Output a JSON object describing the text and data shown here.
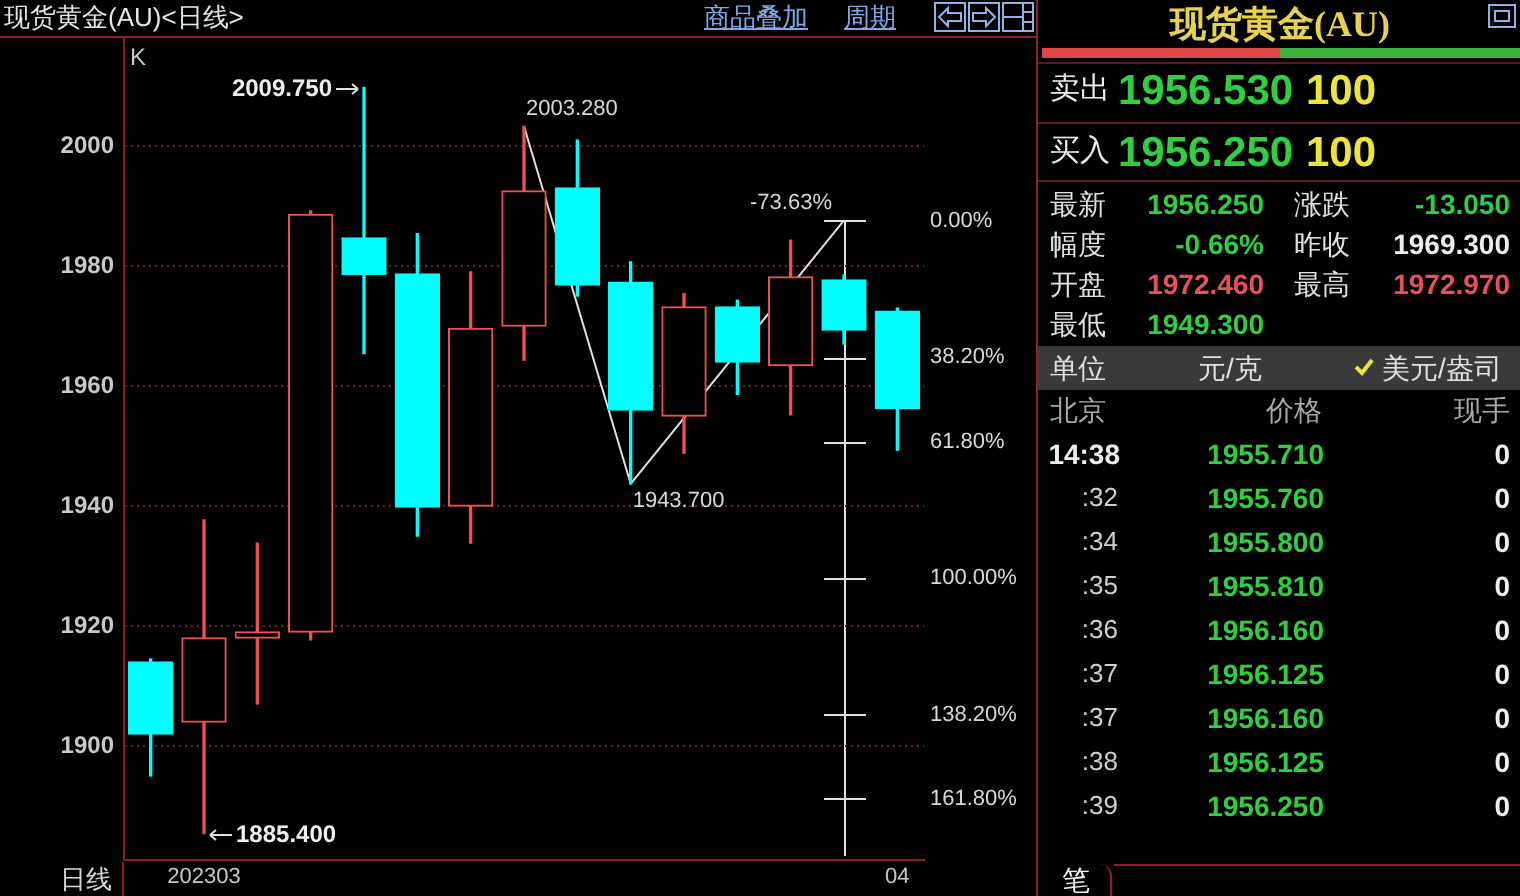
{
  "chart_data": [
    {
      "type": "candlestick",
      "title": "现货黄金(AU)<日线>",
      "xlabel": "日线",
      "categories": [
        null,
        "202303",
        null,
        null,
        null,
        null,
        null,
        null,
        null,
        null,
        null,
        null,
        null,
        null,
        "04"
      ],
      "ohlc": [
        [
          1914,
          1914.5,
          1895,
          1902
        ],
        [
          1904,
          1937.7,
          1885.4,
          1918
        ],
        [
          1918,
          1933.8,
          1907,
          1919
        ],
        [
          1919,
          1989.2,
          1917.7,
          1988.6
        ],
        [
          1984.7,
          2009.75,
          1965.4,
          1978.6
        ],
        [
          1978.7,
          1985.4,
          1935,
          1939.8
        ],
        [
          1940,
          1979,
          1933.8,
          1969.6
        ],
        [
          1970,
          2003.28,
          1964.3,
          1992.5
        ],
        [
          1993,
          2001,
          1975,
          1976.8
        ],
        [
          1977.3,
          1980.7,
          1943.7,
          1956
        ],
        [
          1955,
          1975.4,
          1948.8,
          1973.2
        ],
        [
          1973.2,
          1974.3,
          1958.6,
          1964
        ],
        [
          1963.4,
          1984.3,
          1955.2,
          1978.2
        ],
        [
          1977.7,
          1978.5,
          1967,
          1969.3
        ],
        [
          1972.46,
          1972.97,
          1949.3,
          1956.25
        ]
      ],
      "colors": [
        "#00ffff",
        "#f05050",
        "#f05050",
        "#f05050",
        "#00ffff",
        "#00ffff",
        "#f05050",
        "#f05050",
        "#00ffff",
        "#00ffff",
        "#f05050",
        "#00ffff",
        "#f05050",
        "#00ffff",
        "#00ffff"
      ],
      "series": [
        {
          "type": "line",
          "color": "#e0e0e0",
          "values": [
            null,
            null,
            null,
            null,
            null,
            null,
            null,
            2003.28,
            null,
            1943.7,
            null,
            null,
            null,
            1987.6,
            null
          ],
          "value_labels": [
            null,
            null,
            null,
            null,
            null,
            null,
            null,
            "2003.280",
            null,
            "1943.700",
            null,
            null,
            null,
            null,
            null
          ]
        }
      ],
      "ylim": [
        1881,
        2018
      ],
      "yticks": [
        1900,
        1920,
        1940,
        1960,
        1980,
        2000
      ],
      "y2lim": [
        178.9,
        -51.1
      ],
      "y2ticks": [
        {
          "value": 0,
          "label": "0.00%"
        },
        {
          "value": 38.2,
          "label": "38.20%"
        },
        {
          "value": 61.8,
          "label": "61.80%"
        },
        {
          "value": 100,
          "label": "100.00%"
        },
        {
          "value": 138.2,
          "label": "138.20%"
        },
        {
          "value": 161.8,
          "label": "161.80%"
        }
      ],
      "grid": "y",
      "marker": "none",
      "annotations": [
        "K",
        "商品叠加",
        "周期",
        "2009.750",
        "1885.400",
        "-73.63%"
      ]
    },
    {
      "type": "other",
      "title": "现货黄金(AU)",
      "annotations": [
        "卖出",
        "1956.530",
        "100",
        "买入",
        "1956.250",
        "100",
        "最新",
        "1956.250",
        "涨跌",
        "-13.050",
        "幅度",
        "-0.66%",
        "昨收",
        "1969.300",
        "开盘",
        "1972.460",
        "最高",
        "1972.970",
        "最低",
        "1949.300",
        "单位",
        "元/克",
        "美元/盎司",
        "北京",
        "价格",
        "现手",
        "14:38",
        "1955.710",
        "0",
        ":32",
        "1955.760",
        "0",
        ":34",
        "1955.800",
        "0",
        ":35",
        "1955.810",
        "0",
        ":36",
        "1956.160",
        "0",
        ":37",
        "1956.125",
        "0",
        ":37",
        "1956.160",
        "0",
        ":38",
        "1956.125",
        "0",
        ":39",
        "1956.250",
        "0",
        "笔"
      ]
    }
  ]
}
